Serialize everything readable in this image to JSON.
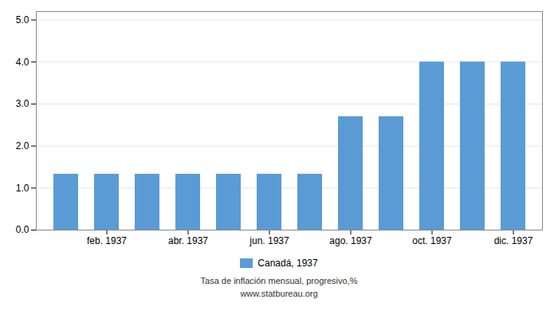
{
  "chart_data": {
    "type": "bar",
    "categories": [
      null,
      "feb. 1937",
      null,
      "abr. 1937",
      null,
      "jun. 1937",
      null,
      "ago. 1937",
      null,
      "oct. 1937",
      null,
      "dic. 1937"
    ],
    "series": [
      {
        "name": "Canadá, 1937",
        "color": "#5b9bd5",
        "values": [
          1.33,
          1.33,
          1.33,
          1.33,
          1.33,
          1.33,
          1.33,
          2.7,
          2.7,
          4.0,
          4.0,
          4.0
        ]
      }
    ],
    "ylim": [
      0,
      5.2
    ],
    "yticks": [
      0,
      1,
      2,
      3,
      4,
      5
    ],
    "grid": true,
    "legend": "bottom",
    "annotations": [
      "Tasa de inflación mensual, progresivo,%",
      "www.statbureau.org"
    ]
  }
}
